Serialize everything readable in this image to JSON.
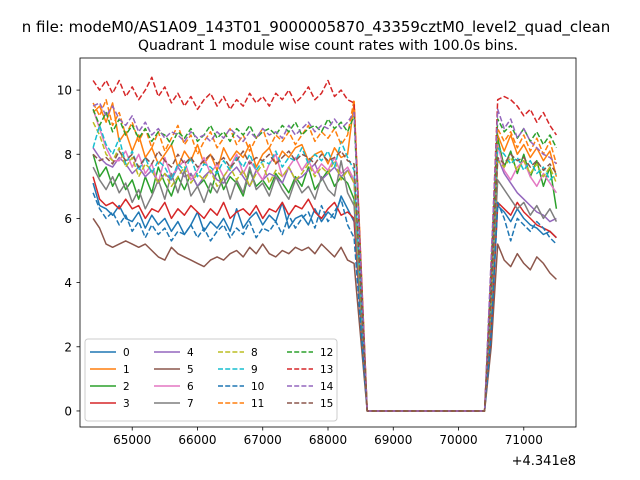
{
  "figure": {
    "suptitle": "n file: modeM0/AS1A09_143T01_9000005870_43359cztM0_level2_quad_clean",
    "title": "Quadrant 1 module wise count rates with 100.0s bins.",
    "offset_text": "+4.341e8"
  },
  "chart_data": {
    "type": "line",
    "title": "Quadrant 1 module wise count rates with 100.0s bins.",
    "xlabel": "",
    "ylabel": "",
    "x_offset": 434100000,
    "xlim": [
      64200,
      71800
    ],
    "ylim": [
      -0.5,
      11.0
    ],
    "xticks": [
      65000,
      66000,
      67000,
      68000,
      69000,
      70000,
      71000
    ],
    "yticks": [
      0,
      2,
      4,
      6,
      8,
      10
    ],
    "grid": false,
    "legend": {
      "location": "lower-left",
      "columns": 4
    },
    "segments": [
      {
        "x_start": 64400,
        "x_end": 68400,
        "step": 100
      },
      {
        "x_start": 70500,
        "x_end": 71500,
        "step": 100
      }
    ],
    "gap_x": [
      68600,
      68700,
      68800,
      68900,
      69000,
      69100,
      69200,
      69300,
      69400,
      69500,
      69600,
      69700,
      69800,
      69900,
      70000,
      70100,
      70200,
      70300,
      70400
    ],
    "gap_value": 0,
    "series": [
      {
        "name": "0",
        "color": "#1f77b4",
        "dash": "solid",
        "seg1": [
          7.1,
          6.4,
          6.3,
          6.1,
          6.4,
          6.0,
          5.9,
          6.2,
          5.7,
          6.1,
          5.8,
          6.0,
          5.6,
          5.9,
          5.5,
          5.8,
          6.2,
          5.6,
          5.9,
          5.7,
          6.0,
          5.6,
          6.3,
          5.7,
          6.0,
          6.2,
          5.8,
          6.1,
          5.9,
          6.5,
          5.7,
          6.0,
          6.1,
          5.8,
          6.3,
          5.9,
          6.2,
          6.0,
          6.7,
          6.3,
          5.9
        ],
        "seg2": [
          2.5,
          6.4,
          6.2,
          5.9,
          6.3,
          6.0,
          5.8,
          5.7,
          5.5,
          5.6,
          5.4
        ]
      },
      {
        "name": "1",
        "color": "#ff7f0e",
        "dash": "solid",
        "seg1": [
          9.3,
          9.5,
          9.0,
          9.6,
          8.4,
          8.7,
          8.1,
          8.6,
          7.9,
          8.2,
          7.7,
          8.0,
          8.3,
          7.6,
          8.1,
          7.8,
          8.3,
          7.7,
          8.0,
          7.5,
          8.2,
          7.8,
          8.1,
          7.9,
          8.3,
          7.6,
          8.0,
          8.2,
          7.7,
          8.1,
          7.9,
          8.2,
          8.3,
          7.8,
          8.0,
          8.1,
          7.7,
          8.2,
          7.9,
          8.0,
          9.6
        ],
        "seg2": [
          4.0,
          8.6,
          8.1,
          8.6,
          8.0,
          8.3,
          7.9,
          8.2,
          7.8,
          8.1,
          7.3
        ]
      },
      {
        "name": "2",
        "color": "#2ca02c",
        "dash": "solid",
        "seg1": [
          8.0,
          7.3,
          7.6,
          7.0,
          7.4,
          6.9,
          7.2,
          6.6,
          7.3,
          6.8,
          7.6,
          7.1,
          6.7,
          7.3,
          6.9,
          7.4,
          7.0,
          7.2,
          6.8,
          7.5,
          6.9,
          7.3,
          7.1,
          6.7,
          7.5,
          7.0,
          7.2,
          6.9,
          7.4,
          7.1,
          6.8,
          7.3,
          7.0,
          7.6,
          6.9,
          7.2,
          7.5,
          7.0,
          7.3,
          7.1,
          6.6
        ],
        "seg2": [
          3.0,
          8.5,
          7.6,
          8.1,
          7.4,
          8.0,
          7.3,
          7.8,
          7.0,
          7.6,
          6.3
        ]
      },
      {
        "name": "3",
        "color": "#d62728",
        "dash": "solid",
        "seg1": [
          7.3,
          6.6,
          6.4,
          6.5,
          6.3,
          6.6,
          6.3,
          6.4,
          6.0,
          6.3,
          6.2,
          6.5,
          6.0,
          6.3,
          6.1,
          6.4,
          6.2,
          6.0,
          6.3,
          6.1,
          6.5,
          6.0,
          6.2,
          6.3,
          6.1,
          6.4,
          6.0,
          6.3,
          6.2,
          6.5,
          6.1,
          6.4,
          6.3,
          6.6,
          6.2,
          6.0,
          6.3,
          6.5,
          6.1,
          6.2,
          6.0
        ],
        "seg2": [
          2.6,
          6.5,
          6.3,
          6.1,
          6.5,
          6.2,
          6.0,
          5.8,
          5.7,
          5.6,
          5.4
        ]
      },
      {
        "name": "4",
        "color": "#9467bd",
        "dash": "solid",
        "seg1": [
          8.2,
          7.9,
          7.7,
          7.6,
          7.9,
          7.7,
          7.4,
          7.6,
          7.3,
          7.5,
          7.1,
          7.4,
          7.2,
          7.6,
          7.3,
          7.4,
          7.0,
          7.3,
          7.5,
          7.2,
          7.1,
          7.4,
          7.6,
          7.3,
          7.0,
          7.5,
          7.2,
          7.4,
          7.3,
          7.1,
          7.6,
          7.2,
          7.3,
          7.5,
          7.7,
          7.2,
          7.4,
          7.6,
          7.3,
          7.5,
          7.1
        ],
        "seg2": [
          3.5,
          7.9,
          7.4,
          7.1,
          6.8,
          6.6,
          6.4,
          6.2,
          6.1,
          5.9,
          6.0
        ]
      },
      {
        "name": "5",
        "color": "#8c564b",
        "dash": "solid",
        "seg1": [
          6.0,
          5.7,
          5.2,
          5.1,
          5.2,
          5.3,
          5.2,
          5.1,
          5.2,
          5.0,
          4.8,
          4.7,
          5.1,
          4.9,
          4.8,
          4.7,
          4.6,
          4.5,
          4.7,
          4.8,
          4.7,
          4.9,
          5.0,
          4.8,
          5.1,
          4.9,
          5.2,
          4.9,
          4.8,
          5.0,
          4.9,
          5.1,
          5.0,
          5.1,
          4.9,
          5.2,
          5.0,
          4.8,
          5.1,
          4.7,
          4.6
        ],
        "seg2": [
          2.0,
          5.2,
          4.7,
          4.5,
          4.9,
          4.6,
          4.4,
          4.8,
          4.6,
          4.3,
          4.1
        ]
      },
      {
        "name": "6",
        "color": "#e377c2",
        "dash": "solid",
        "seg1": [
          9.4,
          8.8,
          8.2,
          7.8,
          7.8,
          8.1,
          7.6,
          8.0,
          7.4,
          7.7,
          7.1,
          7.9,
          7.3,
          7.6,
          7.8,
          7.2,
          7.5,
          7.9,
          7.4,
          7.7,
          7.3,
          7.6,
          8.0,
          7.4,
          7.8,
          7.5,
          7.2,
          7.7,
          8.0,
          7.3,
          7.6,
          7.9,
          7.5,
          7.8,
          7.4,
          7.7,
          7.5,
          7.9,
          7.4,
          7.6,
          7.2
        ],
        "seg2": [
          3.6,
          8.3,
          7.5,
          7.2,
          7.6,
          7.8,
          7.3,
          7.0,
          7.4,
          7.1,
          6.8
        ]
      },
      {
        "name": "7",
        "color": "#7f7f7f",
        "dash": "solid",
        "seg1": [
          7.6,
          7.2,
          6.9,
          7.3,
          6.8,
          7.1,
          6.5,
          6.9,
          6.3,
          6.7,
          7.2,
          6.6,
          7.4,
          6.8,
          7.5,
          6.7,
          7.0,
          6.5,
          7.1,
          6.8,
          7.3,
          6.6,
          7.2,
          6.8,
          7.6,
          6.9,
          7.1,
          6.7,
          7.3,
          6.9,
          6.6,
          7.2,
          6.8,
          7.0,
          6.6,
          7.3,
          6.9,
          6.7,
          7.8,
          6.8,
          6.4
        ],
        "seg2": [
          3.2,
          7.2,
          6.9,
          6.6,
          6.3,
          6.5,
          6.1,
          6.4,
          6.0,
          6.3,
          5.9
        ]
      },
      {
        "name": "8",
        "color": "#bcbd22",
        "dash": "dashed",
        "seg1": [
          9.0,
          8.6,
          8.0,
          7.8,
          8.2,
          7.6,
          7.9,
          7.3,
          7.7,
          7.5,
          7.1,
          7.4,
          7.0,
          7.3,
          7.6,
          7.1,
          7.4,
          7.2,
          7.5,
          7.0,
          7.3,
          7.6,
          7.2,
          7.5,
          7.0,
          7.4,
          7.7,
          7.1,
          7.5,
          7.3,
          7.6,
          7.2,
          7.4,
          7.7,
          7.3,
          7.6,
          7.4,
          7.8,
          7.2,
          7.5,
          7.1
        ],
        "seg2": [
          3.4,
          7.8,
          7.6,
          7.9,
          7.5,
          7.8,
          7.4,
          7.7,
          7.3,
          7.6,
          7.1
        ]
      },
      {
        "name": "9",
        "color": "#17becf",
        "dash": "dashed",
        "seg1": [
          8.2,
          8.9,
          8.3,
          8.0,
          8.5,
          7.7,
          8.1,
          7.5,
          7.9,
          7.4,
          7.8,
          7.6,
          7.2,
          7.7,
          7.5,
          7.9,
          7.3,
          7.7,
          7.6,
          7.4,
          7.8,
          7.5,
          7.9,
          7.6,
          8.0,
          7.5,
          7.8,
          7.7,
          8.1,
          7.6,
          7.9,
          7.8,
          8.2,
          7.7,
          8.0,
          7.8,
          8.1,
          7.6,
          8.4,
          7.9,
          7.5
        ],
        "seg2": [
          3.8,
          8.2,
          8.0,
          7.7,
          7.9,
          7.5,
          7.8,
          7.4,
          7.6,
          7.2,
          7.4
        ]
      },
      {
        "name": "10",
        "color": "#1f77b4",
        "dash": "dashed",
        "seg1": [
          6.8,
          6.3,
          6.0,
          6.2,
          5.8,
          6.1,
          5.6,
          5.9,
          5.4,
          5.8,
          5.5,
          5.7,
          5.3,
          5.6,
          5.5,
          5.8,
          5.4,
          5.7,
          5.3,
          5.6,
          5.8,
          5.4,
          5.7,
          5.5,
          5.9,
          5.4,
          5.7,
          5.6,
          5.9,
          5.5,
          6.1,
          5.7,
          6.0,
          6.2,
          5.7,
          6.4,
          5.9,
          6.2,
          6.6,
          5.8,
          5.4
        ],
        "seg2": [
          2.4,
          6.5,
          6.0,
          5.3,
          6.0,
          5.8,
          5.6,
          5.9,
          5.7,
          5.4,
          5.2
        ]
      },
      {
        "name": "11",
        "color": "#ff7f0e",
        "dash": "dashed",
        "seg1": [
          9.6,
          9.2,
          9.7,
          8.9,
          9.3,
          8.6,
          9.0,
          8.4,
          8.8,
          8.2,
          8.7,
          8.1,
          8.5,
          8.9,
          8.3,
          8.6,
          8.0,
          8.4,
          8.7,
          8.2,
          8.5,
          8.8,
          8.3,
          8.6,
          8.1,
          8.5,
          8.8,
          8.2,
          8.6,
          8.4,
          8.7,
          8.3,
          8.6,
          8.9,
          8.4,
          8.7,
          8.5,
          8.8,
          8.3,
          8.6,
          9.7
        ],
        "seg2": [
          4.2,
          8.8,
          8.4,
          8.7,
          8.2,
          8.6,
          8.1,
          8.5,
          8.0,
          8.4,
          7.7
        ]
      },
      {
        "name": "12",
        "color": "#2ca02c",
        "dash": "dashed",
        "seg1": [
          9.4,
          8.9,
          9.3,
          8.7,
          9.1,
          8.6,
          8.9,
          8.5,
          8.8,
          8.4,
          8.7,
          8.6,
          8.3,
          8.7,
          8.5,
          8.8,
          8.4,
          8.6,
          8.9,
          8.5,
          8.7,
          8.4,
          8.8,
          8.6,
          8.9,
          8.5,
          8.7,
          8.8,
          8.6,
          8.9,
          8.7,
          9.0,
          8.6,
          8.8,
          8.9,
          8.7,
          9.1,
          8.8,
          9.0,
          8.7,
          9.2
        ],
        "seg2": [
          4.4,
          9.1,
          8.7,
          8.9,
          8.5,
          8.8,
          8.4,
          8.7,
          8.3,
          8.6,
          8.2
        ]
      },
      {
        "name": "13",
        "color": "#d62728",
        "dash": "dashed",
        "seg1": [
          10.3,
          10.0,
          10.3,
          9.9,
          10.3,
          9.8,
          10.1,
          9.7,
          10.0,
          10.4,
          9.8,
          10.1,
          9.6,
          9.9,
          9.5,
          9.8,
          9.4,
          9.7,
          9.9,
          9.5,
          9.8,
          9.4,
          9.7,
          9.5,
          9.9,
          9.6,
          9.8,
          9.5,
          9.9,
          9.7,
          10.0,
          9.6,
          9.8,
          10.1,
          9.7,
          9.9,
          10.3,
          9.8,
          10.0,
          9.7,
          9.6
        ],
        "seg2": [
          4.6,
          9.7,
          9.8,
          9.7,
          9.5,
          9.2,
          9.4,
          9.0,
          9.3,
          8.9,
          8.6
        ]
      },
      {
        "name": "14",
        "color": "#9467bd",
        "dash": "dashed",
        "seg1": [
          9.5,
          9.6,
          9.2,
          9.5,
          9.1,
          8.9,
          9.2,
          8.7,
          9.0,
          8.6,
          8.8,
          8.5,
          8.7,
          8.6,
          8.4,
          8.7,
          8.5,
          8.6,
          8.4,
          8.7,
          8.5,
          8.8,
          8.6,
          8.4,
          8.7,
          8.5,
          8.8,
          8.6,
          8.7,
          8.5,
          8.9,
          8.6,
          8.8,
          9.0,
          8.7,
          8.9,
          8.8,
          9.1,
          8.8,
          9.0,
          9.3
        ],
        "seg2": [
          4.8,
          9.4,
          8.8,
          9.1,
          8.5,
          8.8,
          8.4,
          8.2,
          8.0,
          7.9,
          7.7
        ]
      },
      {
        "name": "15",
        "color": "#8c564b",
        "dash": "dashed",
        "seg1": [
          8.0,
          7.8,
          7.9,
          7.7,
          8.1,
          7.8,
          8.0,
          7.6,
          7.9,
          7.7,
          8.1,
          7.8,
          7.6,
          8.0,
          7.7,
          7.9,
          7.6,
          7.8,
          8.0,
          7.7,
          7.9,
          7.6,
          7.8,
          8.1,
          7.7,
          7.9,
          7.8,
          8.0,
          7.7,
          7.9,
          8.1,
          7.8,
          8.0,
          7.9,
          7.7,
          8.0,
          7.8,
          7.9,
          8.1,
          7.8,
          7.7
        ],
        "seg2": [
          3.6,
          7.9,
          7.7,
          8.0,
          7.8,
          7.9,
          7.6,
          7.8,
          7.5,
          7.7,
          7.4
        ]
      }
    ]
  }
}
